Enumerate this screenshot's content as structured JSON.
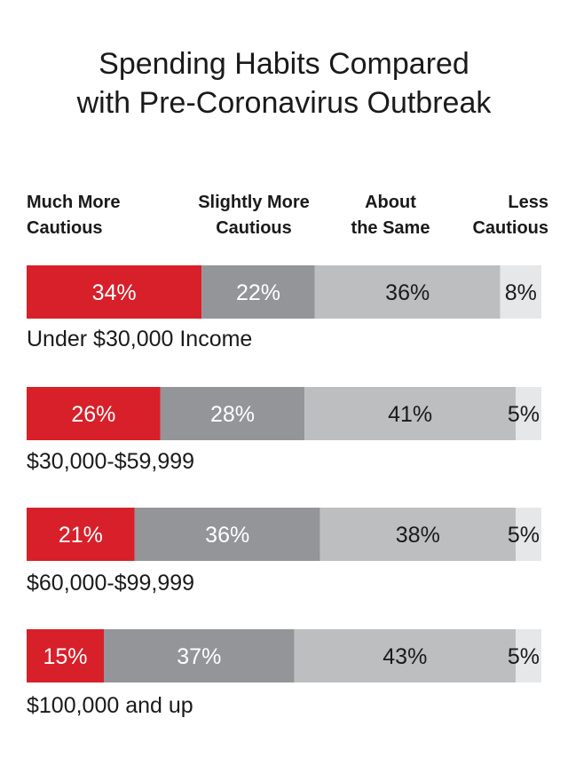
{
  "title_lines": [
    "Spending Habits Compared",
    "with Pre-Coronavirus Outbreak"
  ],
  "chart_data": {
    "type": "bar",
    "orientation": "horizontal",
    "stacked": "percent",
    "title": "Spending Habits Compared with Pre-Coronavirus Outbreak",
    "categories": [
      "Under $30,000 Income",
      "$30,000-$59,999",
      "$60,000-$99,999",
      "$100,000 and up"
    ],
    "series": [
      {
        "name": "Much More Cautious",
        "label_lines": [
          "Much More",
          "Cautious"
        ],
        "color": "#d7202a",
        "label_color": "#ffffff",
        "values": [
          34,
          26,
          21,
          15
        ]
      },
      {
        "name": "Slightly More Cautious",
        "label_lines": [
          "Slightly More",
          "Cautious"
        ],
        "color": "#939598",
        "label_color": "#ffffff",
        "values": [
          22,
          28,
          36,
          37
        ]
      },
      {
        "name": "About the Same",
        "label_lines": [
          "About",
          "the Same"
        ],
        "color": "#bcbec0",
        "label_color": "#1a1a1a",
        "values": [
          36,
          41,
          38,
          43
        ]
      },
      {
        "name": "Less Cautious",
        "label_lines": [
          "Less",
          "Cautious"
        ],
        "color": "#e6e7e8",
        "label_color": "#1a1a1a",
        "values": [
          8,
          5,
          5,
          5
        ]
      }
    ],
    "value_suffix": "%",
    "xlim": [
      0,
      100
    ],
    "grid": false,
    "legend": "top"
  }
}
